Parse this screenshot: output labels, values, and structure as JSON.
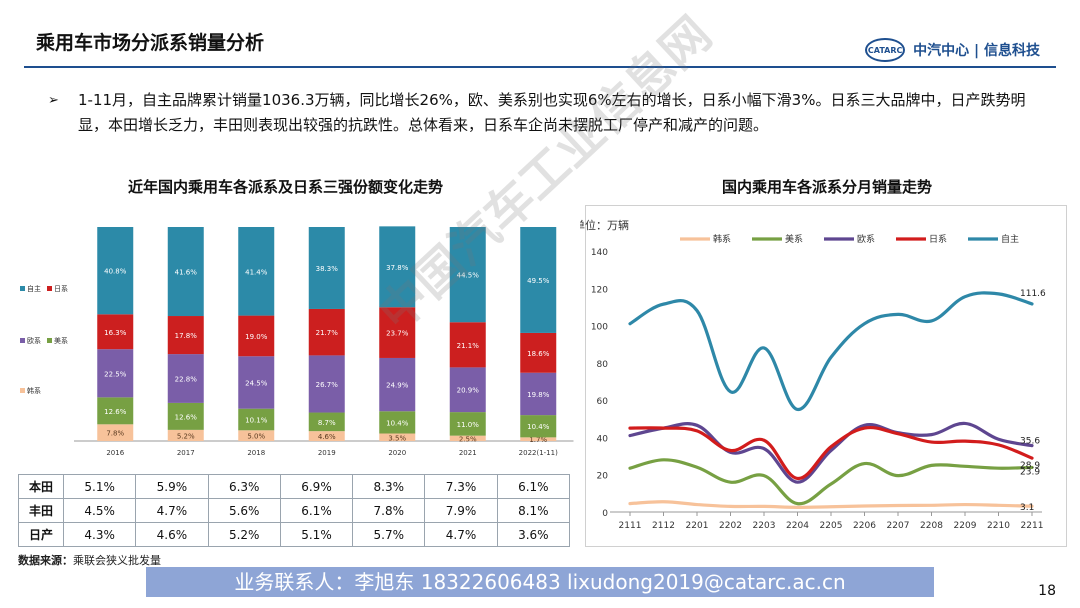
{
  "header": {
    "title": "乘用车市场分派系销量分析",
    "logo_mark": "CATARC",
    "logo_text": "中汽中心 | 信息科技"
  },
  "bullet": {
    "mark": "➢",
    "text": "1-11月，自主品牌累计销量1036.3万辆，同比增长26%，欧、美系别也实现6%左右的增长，日系小幅下滑3%。日系三大品牌中，日产跌势明显，本田增长乏力，丰田则表现出较强的抗跌性。总体看来，日系车企尚未摆脱工厂停产和减产的问题。"
  },
  "chart_data": [
    {
      "type": "bar",
      "stacked": true,
      "percent": true,
      "title": "近年国内乘用车各派系及日系三强份额变化走势",
      "categories": [
        "2016",
        "2017",
        "2018",
        "2019",
        "2020",
        "2021",
        "2022(1-11)"
      ],
      "series": [
        {
          "name": "韩系",
          "color": "#f7c29a",
          "values": [
            7.8,
            5.2,
            5.0,
            4.6,
            3.5,
            2.5,
            1.7
          ]
        },
        {
          "name": "美系",
          "color": "#77a043",
          "values": [
            12.6,
            12.6,
            10.1,
            8.7,
            10.4,
            11.0,
            10.4
          ]
        },
        {
          "name": "欧系",
          "color": "#7a5ea8",
          "values": [
            22.5,
            22.8,
            24.5,
            26.7,
            24.9,
            20.9,
            19.8
          ]
        },
        {
          "name": "日系",
          "color": "#cc1f1f",
          "values": [
            16.3,
            17.8,
            19.0,
            21.7,
            23.7,
            21.1,
            18.6
          ]
        },
        {
          "name": "自主",
          "color": "#2c8aa8",
          "values": [
            40.8,
            41.6,
            41.4,
            38.3,
            37.8,
            44.5,
            49.5
          ]
        }
      ],
      "legend_order": [
        "自主",
        "日系",
        "欧系",
        "美系",
        "韩系"
      ],
      "legend_position": "left"
    },
    {
      "type": "line",
      "title": "国内乘用车各派系分月销量走势",
      "ylabel": "单位：万辆",
      "ylim": [
        0,
        140
      ],
      "yticks": [
        0,
        20,
        40,
        60,
        80,
        100,
        120,
        140
      ],
      "categories": [
        "2111",
        "2112",
        "2201",
        "2202",
        "2203",
        "2204",
        "2205",
        "2206",
        "2207",
        "2208",
        "2209",
        "2210",
        "2211"
      ],
      "series": [
        {
          "name": "韩系",
          "color": "#f7c29a",
          "values": [
            4.5,
            5.5,
            4.0,
            3.0,
            3.0,
            2.5,
            2.8,
            3.2,
            3.5,
            3.6,
            4.0,
            3.6,
            3.1
          ],
          "end_label": "3.1"
        },
        {
          "name": "美系",
          "color": "#77a043",
          "values": [
            23.5,
            28.0,
            24.0,
            16.0,
            19.5,
            4.5,
            15.0,
            26.0,
            19.5,
            25.0,
            24.5,
            23.5,
            23.9
          ],
          "end_label": "23.9"
        },
        {
          "name": "欧系",
          "color": "#5e4690",
          "values": [
            41.0,
            45.0,
            46.5,
            32.0,
            34.0,
            16.0,
            33.0,
            46.5,
            42.5,
            41.5,
            47.5,
            39.0,
            35.6
          ],
          "end_label": "35.6"
        },
        {
          "name": "日系",
          "color": "#d21c1c",
          "values": [
            45.0,
            45.0,
            43.5,
            33.0,
            38.5,
            18.0,
            35.0,
            45.0,
            42.0,
            37.5,
            38.0,
            36.0,
            28.9
          ],
          "end_label": "28.9"
        },
        {
          "name": "自主",
          "color": "#2e88a8",
          "values": [
            101.0,
            111.5,
            108.0,
            64.5,
            88.0,
            55.0,
            83.0,
            101.0,
            106.0,
            102.5,
            115.5,
            117.0,
            111.6
          ],
          "end_label": "111.6"
        }
      ],
      "legend_position": "top"
    }
  ],
  "share_table": {
    "rows": [
      {
        "label": "本田",
        "values": [
          "5.1%",
          "5.9%",
          "6.3%",
          "6.9%",
          "8.3%",
          "7.3%",
          "6.1%"
        ]
      },
      {
        "label": "丰田",
        "values": [
          "4.5%",
          "4.7%",
          "5.6%",
          "6.1%",
          "7.8%",
          "7.9%",
          "8.1%"
        ]
      },
      {
        "label": "日产",
        "values": [
          "4.3%",
          "4.6%",
          "5.2%",
          "5.1%",
          "5.7%",
          "4.7%",
          "3.6%"
        ]
      }
    ]
  },
  "source": {
    "label": "数据来源：",
    "text": "乘联会狭义批发量"
  },
  "footer": {
    "contact": "业务联系人：李旭东  18322606483  lixudong2019@catarc.ac.cn",
    "page": "18"
  },
  "watermark": "中国汽车工业信息网"
}
